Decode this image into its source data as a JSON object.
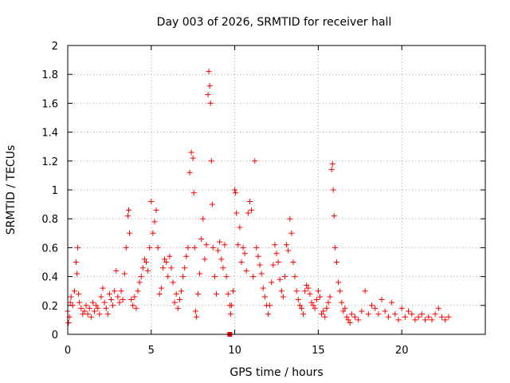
{
  "chart_data": {
    "type": "scatter",
    "title": "Day 003 of 2026, SRMTID for receiver hall",
    "xlabel": "GPS time / hours",
    "ylabel": "SRMTID / TECUs",
    "xlim": [
      0,
      25
    ],
    "ylim": [
      0,
      2
    ],
    "grid": true,
    "marker": "plus",
    "color": "#ff0000",
    "x_ticks": [
      0,
      5,
      10,
      15,
      20
    ],
    "x_tick_labels": [
      "0",
      "5",
      "10",
      "15",
      "20"
    ],
    "y_ticks": [
      0,
      0.2,
      0.4,
      0.6,
      0.8,
      1,
      1.2,
      1.4,
      1.6,
      1.8,
      2
    ],
    "y_tick_labels": [
      "0",
      "0.2",
      "0.4",
      "0.6",
      "0.8",
      "1",
      "1.2",
      "1.4",
      "1.6",
      "1.8",
      "2"
    ],
    "series": [
      {
        "name": "SRMTID",
        "x": [
          0.0,
          0.05,
          0.1,
          0.15,
          0.2,
          0.3,
          0.4,
          0.5,
          0.55,
          0.6,
          0.65,
          0.7,
          0.8,
          0.9,
          1.0,
          1.1,
          1.2,
          1.3,
          1.4,
          1.5,
          1.6,
          1.7,
          1.8,
          1.9,
          2.0,
          2.1,
          2.2,
          2.3,
          2.4,
          2.5,
          2.6,
          2.7,
          2.8,
          2.9,
          3.0,
          3.1,
          3.2,
          3.3,
          3.4,
          3.5,
          3.6,
          3.65,
          3.7,
          3.8,
          3.9,
          4.0,
          4.1,
          4.2,
          4.3,
          4.4,
          4.5,
          4.6,
          4.7,
          4.8,
          4.9,
          5.0,
          5.1,
          5.2,
          5.3,
          5.4,
          5.5,
          5.6,
          5.7,
          5.8,
          5.9,
          6.0,
          6.1,
          6.2,
          6.3,
          6.4,
          6.5,
          6.6,
          6.7,
          6.8,
          6.9,
          7.0,
          7.1,
          7.2,
          7.3,
          7.4,
          7.5,
          7.55,
          7.6,
          7.65,
          7.7,
          7.8,
          7.9,
          8.0,
          8.1,
          8.2,
          8.3,
          8.4,
          8.45,
          8.5,
          8.55,
          8.6,
          8.65,
          8.7,
          8.8,
          8.9,
          9.0,
          9.1,
          9.2,
          9.3,
          9.4,
          9.5,
          9.6,
          9.7,
          9.75,
          9.8,
          9.9,
          10.0,
          10.05,
          10.1,
          10.2,
          10.3,
          10.4,
          10.5,
          10.6,
          10.7,
          10.8,
          10.9,
          11.0,
          11.1,
          11.2,
          11.3,
          11.4,
          11.5,
          11.6,
          11.7,
          11.8,
          11.9,
          12.0,
          12.1,
          12.2,
          12.3,
          12.4,
          12.5,
          12.6,
          12.7,
          12.8,
          12.9,
          13.0,
          13.1,
          13.2,
          13.3,
          13.4,
          13.5,
          13.6,
          13.7,
          13.8,
          13.9,
          14.0,
          14.1,
          14.2,
          14.3,
          14.4,
          14.5,
          14.6,
          14.7,
          14.8,
          14.9,
          15.0,
          15.1,
          15.2,
          15.3,
          15.4,
          15.5,
          15.6,
          15.7,
          15.8,
          15.85,
          15.9,
          15.95,
          16.0,
          16.1,
          16.2,
          16.3,
          16.4,
          16.5,
          16.6,
          16.7,
          16.8,
          16.9,
          17.0,
          17.2,
          17.4,
          17.6,
          17.8,
          18.0,
          18.2,
          18.4,
          18.6,
          18.8,
          19.0,
          19.2,
          19.4,
          19.6,
          19.8,
          20.0,
          20.2,
          20.4,
          20.6,
          20.8,
          21.0,
          21.2,
          21.4,
          21.6,
          21.8,
          22.0,
          22.2,
          22.4,
          22.6,
          22.8
        ],
        "y": [
          0.16,
          0.08,
          0.12,
          0.22,
          0.26,
          0.2,
          0.3,
          0.5,
          0.42,
          0.6,
          0.28,
          0.22,
          0.18,
          0.14,
          0.16,
          0.2,
          0.14,
          0.18,
          0.12,
          0.22,
          0.16,
          0.2,
          0.18,
          0.14,
          0.26,
          0.32,
          0.22,
          0.18,
          0.14,
          0.28,
          0.24,
          0.2,
          0.3,
          0.44,
          0.26,
          0.22,
          0.3,
          0.24,
          0.42,
          0.6,
          0.82,
          0.86,
          0.7,
          0.24,
          0.2,
          0.26,
          0.18,
          0.3,
          0.36,
          0.4,
          0.46,
          0.52,
          0.5,
          0.44,
          0.6,
          0.92,
          0.7,
          0.78,
          0.86,
          0.6,
          0.28,
          0.32,
          0.46,
          0.52,
          0.5,
          0.4,
          0.54,
          0.46,
          0.36,
          0.22,
          0.28,
          0.18,
          0.24,
          0.3,
          0.4,
          0.46,
          0.54,
          0.6,
          1.12,
          1.26,
          1.22,
          0.98,
          0.6,
          0.16,
          0.12,
          0.28,
          0.42,
          0.66,
          0.8,
          0.52,
          0.62,
          1.66,
          1.82,
          1.72,
          1.6,
          1.2,
          0.9,
          0.6,
          0.4,
          0.28,
          0.58,
          0.64,
          0.52,
          0.46,
          0.62,
          0.4,
          0.28,
          0.2,
          0.14,
          0.2,
          0.3,
          1.0,
          0.98,
          0.84,
          0.62,
          0.74,
          0.5,
          0.6,
          0.56,
          0.44,
          0.84,
          0.92,
          0.86,
          0.4,
          1.2,
          0.6,
          0.54,
          0.48,
          0.42,
          0.32,
          0.26,
          0.2,
          0.14,
          0.2,
          0.36,
          0.48,
          0.62,
          0.56,
          0.5,
          0.38,
          0.3,
          0.26,
          0.4,
          0.62,
          0.58,
          0.8,
          0.7,
          0.5,
          0.4,
          0.3,
          0.24,
          0.2,
          0.18,
          0.14,
          0.3,
          0.34,
          0.32,
          0.28,
          0.22,
          0.2,
          0.18,
          0.24,
          0.3,
          0.26,
          0.14,
          0.16,
          0.12,
          0.18,
          0.22,
          0.26,
          1.14,
          1.18,
          1.0,
          0.82,
          0.6,
          0.5,
          0.36,
          0.3,
          0.22,
          0.16,
          0.18,
          0.12,
          0.1,
          0.08,
          0.14,
          0.12,
          0.1,
          0.16,
          0.3,
          0.14,
          0.2,
          0.18,
          0.14,
          0.24,
          0.16,
          0.12,
          0.22,
          0.14,
          0.1,
          0.18,
          0.12,
          0.16,
          0.14,
          0.1,
          0.12,
          0.14,
          0.1,
          0.12,
          0.1,
          0.14,
          0.18,
          0.12,
          0.1,
          0.12
        ]
      }
    ],
    "outlier": {
      "x": 9.7,
      "y": 0.0
    }
  }
}
